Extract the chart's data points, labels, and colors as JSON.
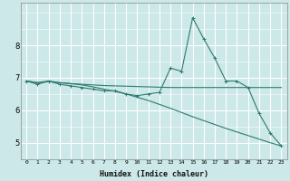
{
  "title": "",
  "xlabel": "Humidex (Indice chaleur)",
  "ylabel": "",
  "background_color": "#cce8e8",
  "grid_major_color": "#ffffff",
  "grid_minor_color": "#f0a0a0",
  "line_color": "#2e7b6e",
  "xlim": [
    -0.5,
    23.5
  ],
  "ylim": [
    4.5,
    9.3
  ],
  "yticks": [
    5,
    6,
    7,
    8
  ],
  "xticks": [
    0,
    1,
    2,
    3,
    4,
    5,
    6,
    7,
    8,
    9,
    10,
    11,
    12,
    13,
    14,
    15,
    16,
    17,
    18,
    19,
    20,
    21,
    22,
    23
  ],
  "x": [
    0,
    1,
    2,
    3,
    4,
    5,
    6,
    7,
    8,
    9,
    10,
    11,
    12,
    13,
    14,
    15,
    16,
    17,
    18,
    19,
    20,
    21,
    22,
    23
  ],
  "line1": [
    6.9,
    6.8,
    6.9,
    6.8,
    6.75,
    6.7,
    6.65,
    6.6,
    6.6,
    6.5,
    6.45,
    6.5,
    6.55,
    7.3,
    7.2,
    8.85,
    8.2,
    7.6,
    6.9,
    6.9,
    6.7,
    5.9,
    5.3,
    4.9
  ],
  "line2": [
    6.9,
    6.85,
    6.9,
    6.85,
    6.82,
    6.8,
    6.78,
    6.76,
    6.75,
    6.74,
    6.73,
    6.72,
    6.71,
    6.7,
    6.7,
    6.7,
    6.7,
    6.7,
    6.7,
    6.7,
    6.7,
    6.7,
    6.7,
    6.7
  ],
  "line3": [
    6.9,
    6.85,
    6.88,
    6.85,
    6.82,
    6.78,
    6.72,
    6.65,
    6.58,
    6.5,
    6.4,
    6.3,
    6.18,
    6.06,
    5.93,
    5.8,
    5.68,
    5.56,
    5.44,
    5.33,
    5.22,
    5.11,
    5.0,
    4.9
  ]
}
